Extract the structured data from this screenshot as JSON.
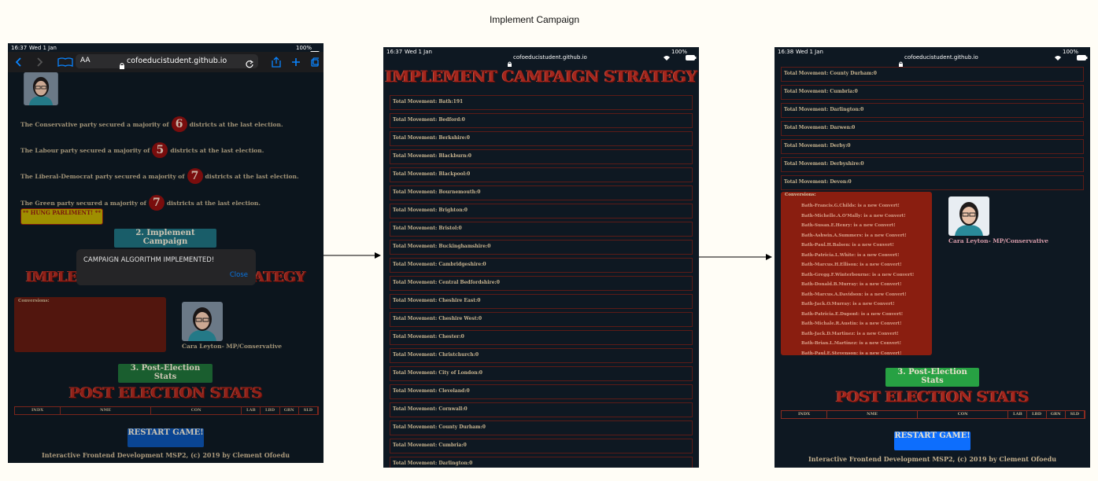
{
  "title": "Implement Campaign",
  "screens": [
    {
      "time": "16:37",
      "date": "Wed 1 Jan",
      "battery": "100%",
      "url": "cofoeducistudent.github.io",
      "text_size": "AA",
      "majorities": [
        {
          "before": "The Conservative party secured a majority of",
          "count": 6,
          "after": "districts at the last election."
        },
        {
          "before": "The Labour party secured a majority of",
          "count": 5,
          "after": "districts at the last election."
        },
        {
          "before": "The Liberal-Democrat party secured a majority of",
          "count": 7,
          "after": "districts at the last election."
        },
        {
          "before": "The Green party secured a majority of",
          "count": 7,
          "after": "districts at the last election."
        }
      ],
      "hung": "** HUNG PARLIMENT! **",
      "campaign_button": "2. Implement Campaign",
      "alert": {
        "message": "CAMPAIGN ALGORITHM IMPLEMENTED!",
        "close": "Close"
      },
      "heading": "IMPLEMENT CAMPAIGN STRATEGY",
      "conversions_label": "Conversions:",
      "candidate": "Cara Leyton- MP/Conservative",
      "stats_button": "3. Post-Election Stats",
      "stats_heading": "POST ELECTION STATS",
      "table_headers": [
        "INDX",
        "NME",
        "CON",
        "LAB",
        "LBD",
        "GRN",
        "SLD"
      ],
      "restart": "RESTART GAME!",
      "footer": "Interactive Frontend Development MSP2, (c) 2019 by Clement Ofoedu"
    },
    {
      "time": "16:37",
      "date": "Wed 1 Jan",
      "battery": "100%",
      "url": "cofoeducistudent.github.io",
      "heading": "IMPLEMENT CAMPAIGN STRATEGY",
      "movements": [
        "Total Movement: Bath:191",
        "Total Movement: Bedford:0",
        "Total Movement: Berkshire:0",
        "Total Movement: Blackburn:0",
        "Total Movement: Blackpool:0",
        "Total Movement: Bournemouth:0",
        "Total Movement: Brighton:0",
        "Total Movement: Bristol:0",
        "Total Movement: Buckinghamshire:0",
        "Total Movement: Cambridgeshire:0",
        "Total Movement: Central Bedfordshire:0",
        "Total Movement: Cheshire East:0",
        "Total Movement: Cheshire West:0",
        "Total Movement: Chester:0",
        "Total Movement: Christchurch:0",
        "Total Movement: City of London:0",
        "Total Movement: Cleveland:0",
        "Total Movement: Cornwall:0",
        "Total Movement: County Durham:0",
        "Total Movement: Cumbria:0",
        "Total Movement: Darlington:0"
      ]
    },
    {
      "time": "16:38",
      "date": "Wed 1 Jan",
      "battery": "100%",
      "url": "cofoeducistudent.github.io",
      "movements": [
        "Total Movement: County Durham:0",
        "Total Movement: Cumbria:0",
        "Total Movement: Darlington:0",
        "Total Movement: Darwen:0",
        "Total Movement: Derby:0",
        "Total Movement: Derbyshire:0",
        "Total Movement: Devon:0"
      ],
      "conversions_label": "Conversions:",
      "conversions": [
        "Bath-Francis.G.Childs: is a new Convert!",
        "Bath-Michelle.A.O'Mally: is a new Convert!",
        "Bath-Susan.E.Henry: is a new Convert!",
        "Bath-Ashwin.A.Summers: is a new Convert!",
        "Bath-Paul.H.Balsen: is a new Convert!",
        "Bath-Patricia.L.White: is a new Convert!",
        "Bath-Marcus.H.Ellison: is a new Convert!",
        "Bath-Gregg.F.Winterbourne: is a new Convert!",
        "Bath-Donald.B.Murray: is a new Convert!",
        "Bath-Marcus.A.Davidson: is a new Convert!",
        "Bath-Jack.O.Murray: is a new Convert!",
        "Bath-Patricia.E.Dupont: is a new Convert!",
        "Bath-Michale.R.Austin: is a new Convert!",
        "Bath-Jack.D.Martinez: is a new Convert!",
        "Bath-Brian.L.Martinez: is a new Convert!",
        "Bath-Paul.E.Stevenson: is a new Convert!"
      ],
      "candidate": "Cara Leyton- MP/Conservative",
      "stats_button": "3. Post-Election Stats",
      "stats_heading": "POST ELECTION STATS",
      "table_headers": [
        "INDX",
        "NME",
        "CON",
        "LAB",
        "LBD",
        "GRN",
        "SLD"
      ],
      "restart": "RESTART GAME!",
      "footer": "Interactive Frontend Development MSP2, (c) 2019 by Clement Ofoedu"
    }
  ]
}
